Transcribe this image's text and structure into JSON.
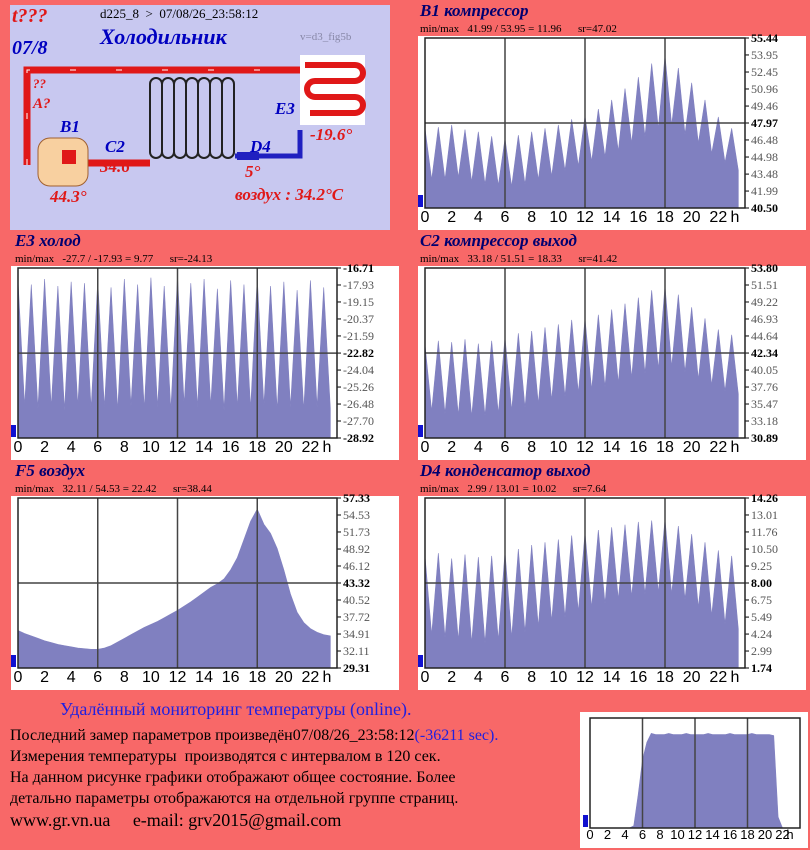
{
  "header": {
    "flag": "t???",
    "date": "07/8",
    "device": "d225_8  >  07/08/26_23:58:12",
    "title": "Холодильник",
    "version": "v=d3_fig5b"
  },
  "diagram": {
    "unknown": "??",
    "a": "A?",
    "sensors": [
      {
        "name": "B1",
        "value": "44.3°"
      },
      {
        "name": "C2",
        "value": "34.6°"
      },
      {
        "name": "D4",
        "value": "5°"
      },
      {
        "name": "E3",
        "value": "-19.6°"
      }
    ],
    "air": "воздух : 34.2°C"
  },
  "chart_data": [
    {
      "type": "area",
      "title": "B1 компрессор",
      "subtitle": "min/max   41.99 / 53.95 = 11.96      sr=47.02",
      "color": "#8080c0",
      "grid": true,
      "x_unit": "h",
      "x": [
        0,
        0.5,
        1,
        1.5,
        2,
        2.5,
        3,
        3.5,
        4,
        4.5,
        5,
        5.5,
        6,
        6.5,
        7,
        7.5,
        8,
        8.5,
        9,
        9.5,
        10,
        10.5,
        11,
        11.5,
        12,
        12.5,
        13,
        13.5,
        14,
        14.5,
        15,
        15.5,
        16,
        16.5,
        17,
        17.5,
        18,
        18.5,
        19,
        19.5,
        20,
        20.5,
        21,
        21.5,
        22,
        22.5,
        23,
        23.5
      ],
      "values": [
        47.5,
        43.0,
        47.6,
        43.0,
        47.8,
        43.2,
        47.4,
        42.8,
        47.2,
        42.6,
        46.8,
        42.5,
        46.6,
        42.4,
        46.9,
        42.6,
        47.2,
        43.0,
        47.5,
        43.3,
        47.8,
        43.8,
        48.3,
        44.2,
        48.6,
        44.6,
        49.2,
        45.0,
        50.0,
        45.5,
        51.0,
        46.2,
        52.0,
        46.8,
        53.2,
        47.5,
        53.9,
        47.8,
        52.8,
        47.0,
        51.5,
        46.2,
        50.0,
        45.3,
        48.5,
        44.5,
        47.5,
        43.8
      ],
      "xlim": [
        0,
        24
      ],
      "xticks": [
        0,
        2,
        4,
        6,
        8,
        10,
        12,
        14,
        16,
        18,
        20,
        22
      ],
      "ylim": [
        40.5,
        55.44
      ],
      "yticks": [
        55.44,
        53.95,
        52.45,
        50.96,
        49.46,
        47.97,
        46.48,
        44.98,
        43.48,
        41.99,
        {
          "value": 40.5,
          "label": "40.50"
        }
      ]
    },
    {
      "type": "area",
      "title": "E3 холод",
      "subtitle": "min/max   -27.7 / -17.93 = 9.77      sr=-24.13",
      "color": "#8080c0",
      "grid": true,
      "x_unit": "h",
      "x": [
        0,
        0.5,
        1,
        1.5,
        2,
        2.5,
        3,
        3.5,
        4,
        4.5,
        5,
        5.5,
        6,
        6.5,
        7,
        7.5,
        8,
        8.5,
        9,
        9.5,
        10,
        10.5,
        11,
        11.5,
        12,
        12.5,
        13,
        13.5,
        14,
        14.5,
        15,
        15.5,
        16,
        16.5,
        17,
        17.5,
        18,
        18.5,
        19,
        19.5,
        20,
        20.5,
        21,
        21.5,
        22,
        22.5,
        23,
        23.5
      ],
      "values": [
        -17.6,
        -26.6,
        -17.9,
        -26.8,
        -17.5,
        -26.7,
        -18.0,
        -26.9,
        -17.7,
        -26.6,
        -17.8,
        -26.8,
        -17.6,
        -26.7,
        -18.1,
        -26.9,
        -17.5,
        -26.6,
        -17.9,
        -26.8,
        -17.4,
        -26.7,
        -18.0,
        -26.9,
        -17.3,
        -26.5,
        -17.8,
        -26.7,
        -17.5,
        -26.6,
        -18.2,
        -26.9,
        -17.6,
        -26.7,
        -17.9,
        -26.8,
        -17.4,
        -26.6,
        -18.0,
        -26.9,
        -17.7,
        -26.7,
        -18.3,
        -26.9,
        -17.6,
        -26.7,
        -18.1,
        -26.8
      ],
      "xlim": [
        0,
        24
      ],
      "xticks": [
        0,
        2,
        4,
        6,
        8,
        10,
        12,
        14,
        16,
        18,
        20,
        22
      ],
      "ylim": [
        -28.92,
        -16.71
      ],
      "yticks": [
        -16.71,
        -17.93,
        -19.15,
        -20.37,
        -21.59,
        -22.82,
        -24.04,
        -25.26,
        -26.48,
        {
          "value": -27.7,
          "label": "-27.70"
        },
        -28.92
      ]
    },
    {
      "type": "area",
      "title": "C2 компрессор выход",
      "subtitle": "min/max   33.18 / 51.51 = 18.33      sr=41.42",
      "color": "#8080c0",
      "grid": true,
      "x_unit": "h",
      "x": [
        0,
        0.5,
        1,
        1.5,
        2,
        2.5,
        3,
        3.5,
        4,
        4.5,
        5,
        5.5,
        6,
        6.5,
        7,
        7.5,
        8,
        8.5,
        9,
        9.5,
        10,
        10.5,
        11,
        11.5,
        12,
        12.5,
        13,
        13.5,
        14,
        14.5,
        15,
        15.5,
        16,
        16.5,
        17,
        17.5,
        18,
        18.5,
        19,
        19.5,
        20,
        20.5,
        21,
        21.5,
        22,
        22.5,
        23,
        23.5
      ],
      "values": [
        43.5,
        34.5,
        44.0,
        34.2,
        43.8,
        34.0,
        44.2,
        33.8,
        43.6,
        33.9,
        44.0,
        34.2,
        44.5,
        34.6,
        45.0,
        35.0,
        45.3,
        35.5,
        45.8,
        36.0,
        46.2,
        36.5,
        46.8,
        37.0,
        47.0,
        37.4,
        47.5,
        37.8,
        48.2,
        38.3,
        49.0,
        39.0,
        49.8,
        39.6,
        50.8,
        40.2,
        51.4,
        40.5,
        50.2,
        39.8,
        48.5,
        38.8,
        47.0,
        38.0,
        45.5,
        37.2,
        44.8,
        36.8
      ],
      "xlim": [
        0,
        24
      ],
      "xticks": [
        0,
        2,
        4,
        6,
        8,
        10,
        12,
        14,
        16,
        18,
        20,
        22
      ],
      "ylim": [
        30.89,
        53.8
      ],
      "yticks": [
        {
          "value": 53.8,
          "label": "53.80"
        },
        51.51,
        49.22,
        46.93,
        44.64,
        42.34,
        40.05,
        37.76,
        35.47,
        33.18,
        30.89
      ]
    },
    {
      "type": "area",
      "title": "F5 воздух",
      "subtitle": "min/max   32.11 / 54.53 = 22.42      sr=38.44",
      "color": "#8080c0",
      "grid": true,
      "x_unit": "h",
      "x": [
        0,
        0.5,
        1,
        1.5,
        2,
        2.5,
        3,
        3.5,
        4,
        4.5,
        5,
        5.5,
        6,
        6.5,
        7,
        7.5,
        8,
        8.5,
        9,
        9.5,
        10,
        10.5,
        11,
        11.5,
        12,
        12.5,
        13,
        13.5,
        14,
        14.5,
        15,
        15.5,
        16,
        16.5,
        17,
        17.5,
        18,
        18.5,
        19,
        19.5,
        20,
        20.5,
        21,
        21.5,
        22,
        22.5,
        23,
        23.5
      ],
      "values": [
        35.5,
        35.0,
        34.6,
        34.2,
        33.8,
        33.5,
        33.2,
        33.0,
        32.8,
        32.6,
        32.5,
        32.4,
        32.4,
        32.6,
        33.0,
        33.6,
        34.2,
        34.8,
        35.4,
        36.0,
        36.5,
        37.0,
        37.6,
        38.2,
        38.8,
        39.5,
        40.2,
        41.0,
        41.8,
        42.6,
        43.2,
        44.0,
        45.5,
        47.5,
        50.5,
        53.5,
        55.5,
        53.0,
        51.5,
        49.0,
        45.5,
        41.5,
        38.5,
        36.8,
        35.8,
        35.2,
        34.8,
        34.6
      ],
      "xlim": [
        0,
        24
      ],
      "xticks": [
        0,
        2,
        4,
        6,
        8,
        10,
        12,
        14,
        16,
        18,
        20,
        22
      ],
      "ylim": [
        29.31,
        57.33
      ],
      "yticks": [
        57.33,
        54.53,
        51.73,
        48.92,
        46.12,
        43.32,
        40.52,
        37.72,
        34.91,
        32.11,
        29.31
      ]
    },
    {
      "type": "area",
      "title": "D4 конденсатор выход",
      "subtitle": "min/max   2.99 / 13.01 = 10.02      sr=7.64",
      "color": "#8080c0",
      "grid": true,
      "x_unit": "h",
      "x": [
        0,
        0.5,
        1,
        1.5,
        2,
        2.5,
        3,
        3.5,
        4,
        4.5,
        5,
        5.5,
        6,
        6.5,
        7,
        7.5,
        8,
        8.5,
        9,
        9.5,
        10,
        10.5,
        11,
        11.5,
        12,
        12.5,
        13,
        13.5,
        14,
        14.5,
        15,
        15.5,
        16,
        16.5,
        17,
        17.5,
        18,
        18.5,
        19,
        19.5,
        20,
        20.5,
        21,
        21.5,
        22,
        22.5,
        23,
        23.5
      ],
      "values": [
        10.0,
        4.2,
        10.2,
        4.0,
        9.8,
        3.8,
        10.1,
        3.6,
        9.9,
        3.6,
        10.0,
        3.8,
        10.3,
        4.0,
        10.5,
        4.4,
        10.8,
        4.8,
        11.0,
        5.2,
        11.2,
        5.5,
        11.5,
        5.9,
        11.7,
        6.2,
        11.9,
        6.5,
        12.1,
        6.8,
        12.3,
        7.0,
        12.5,
        7.2,
        12.6,
        7.3,
        12.7,
        7.2,
        12.2,
        6.8,
        11.6,
        6.2,
        11.0,
        5.6,
        10.4,
        5.0,
        10.0,
        4.6
      ],
      "xlim": [
        0,
        24
      ],
      "xticks": [
        0,
        2,
        4,
        6,
        8,
        10,
        12,
        14,
        16,
        18,
        20,
        22
      ],
      "ylim": [
        1.74,
        14.26
      ],
      "yticks": [
        14.26,
        13.01,
        11.76,
        {
          "value": 10.5,
          "label": "10.50"
        },
        9.25,
        {
          "value": 8,
          "label": "8.00"
        },
        6.75,
        5.49,
        4.24,
        2.99,
        1.74
      ]
    },
    {
      "type": "area",
      "color": "#8080c0",
      "grid": true,
      "x_unit": "h",
      "x": [
        0,
        0.5,
        1,
        1.5,
        2,
        2.5,
        3,
        3.5,
        4,
        4.5,
        5,
        5.5,
        6,
        6.5,
        7,
        7.5,
        8,
        8.5,
        9,
        9.5,
        10,
        10.5,
        11,
        11.5,
        12,
        12.5,
        13,
        13.5,
        14,
        14.5,
        15,
        15.5,
        16,
        16.5,
        17,
        17.5,
        18,
        18.5,
        19,
        19.5,
        20,
        20.5,
        21,
        21.5,
        22,
        22.5,
        23,
        23.5
      ],
      "values": [
        0,
        0,
        0,
        0,
        0,
        0,
        0,
        0,
        0,
        0,
        2,
        30,
        62,
        78,
        86,
        85,
        85,
        85,
        86,
        85,
        85,
        85,
        86,
        85,
        85,
        85,
        85,
        86,
        85,
        85,
        85,
        85,
        86,
        85,
        85,
        85,
        85,
        86,
        85,
        85,
        85,
        85,
        84,
        10,
        0,
        0,
        0,
        0
      ],
      "xlim": [
        0,
        24
      ],
      "xticks": [
        0,
        2,
        4,
        6,
        8,
        10,
        12,
        14,
        16,
        18,
        20,
        22
      ],
      "ylim": [
        0,
        100
      ]
    }
  ],
  "footer": {
    "heading": "Удалённый мониторинг температуры (online).",
    "last": "Последний замер параметров произведён07/08/26_23:58:12",
    "age": "(-36211 sec).",
    "lines": [
      "Измерения температуры  производятся с интервалом в 120 сек.",
      "На данном рисунке графики отображают общее состояние. Более",
      "детально параметры отображаются на отдельной группе страниц."
    ],
    "links": "www.gr.vn.ua     e-mail: grv2015@gmail.com"
  }
}
